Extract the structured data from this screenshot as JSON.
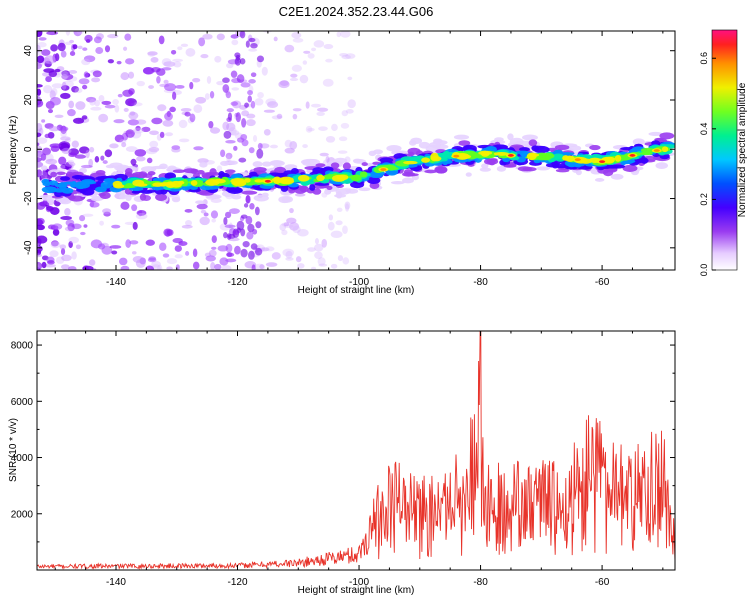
{
  "title": "C2E1.2024.352.23.44.G06",
  "chart_data": [
    {
      "type": "heatmap",
      "xlabel": "Height of straight line (km)",
      "ylabel": "Frequency (Hz)",
      "xlim": [
        -153,
        -48
      ],
      "ylim": [
        -49,
        48
      ],
      "x_ticks": [
        -140,
        -120,
        -100,
        -80,
        -60
      ],
      "y_ticks": [
        -40,
        -20,
        0,
        20,
        40
      ],
      "colorbar": {
        "label": "Normalized spectral amplitude",
        "range": [
          0,
          0.68
        ],
        "ticks": [
          0.0,
          0.2,
          0.4,
          0.6
        ],
        "tick_labels": [
          "0.0",
          "0.2",
          "0.4",
          "0.6"
        ]
      },
      "ridge": {
        "x": [
          -153,
          -130,
          -115,
          -100,
          -90,
          -80,
          -70,
          -60,
          -50
        ],
        "frequency": [
          -15,
          -14,
          -13,
          -11,
          -4,
          -2,
          -3,
          -5,
          0
        ]
      }
    },
    {
      "type": "line",
      "xlabel": "Height of straight line (km)",
      "ylabel": "SNR (10 * v/v)",
      "xlim": [
        -153,
        -48
      ],
      "ylim": [
        0,
        8500
      ],
      "x_ticks": [
        -140,
        -120,
        -100,
        -80,
        -60
      ],
      "y_ticks": [
        2000,
        4000,
        6000,
        8000
      ],
      "color": "#e8332a",
      "peaks": {
        "x": [
          -153,
          -120,
          -110,
          -100,
          -98,
          -95,
          -90,
          -85,
          -82,
          -80,
          -79,
          -75,
          -70,
          -66,
          -61,
          -58,
          -54,
          -50,
          -48
        ],
        "y": [
          200,
          250,
          400,
          900,
          2400,
          4300,
          3300,
          4000,
          4800,
          8500,
          4000,
          3800,
          4200,
          4500,
          6000,
          4500,
          4800,
          5300,
          1400
        ]
      }
    }
  ]
}
